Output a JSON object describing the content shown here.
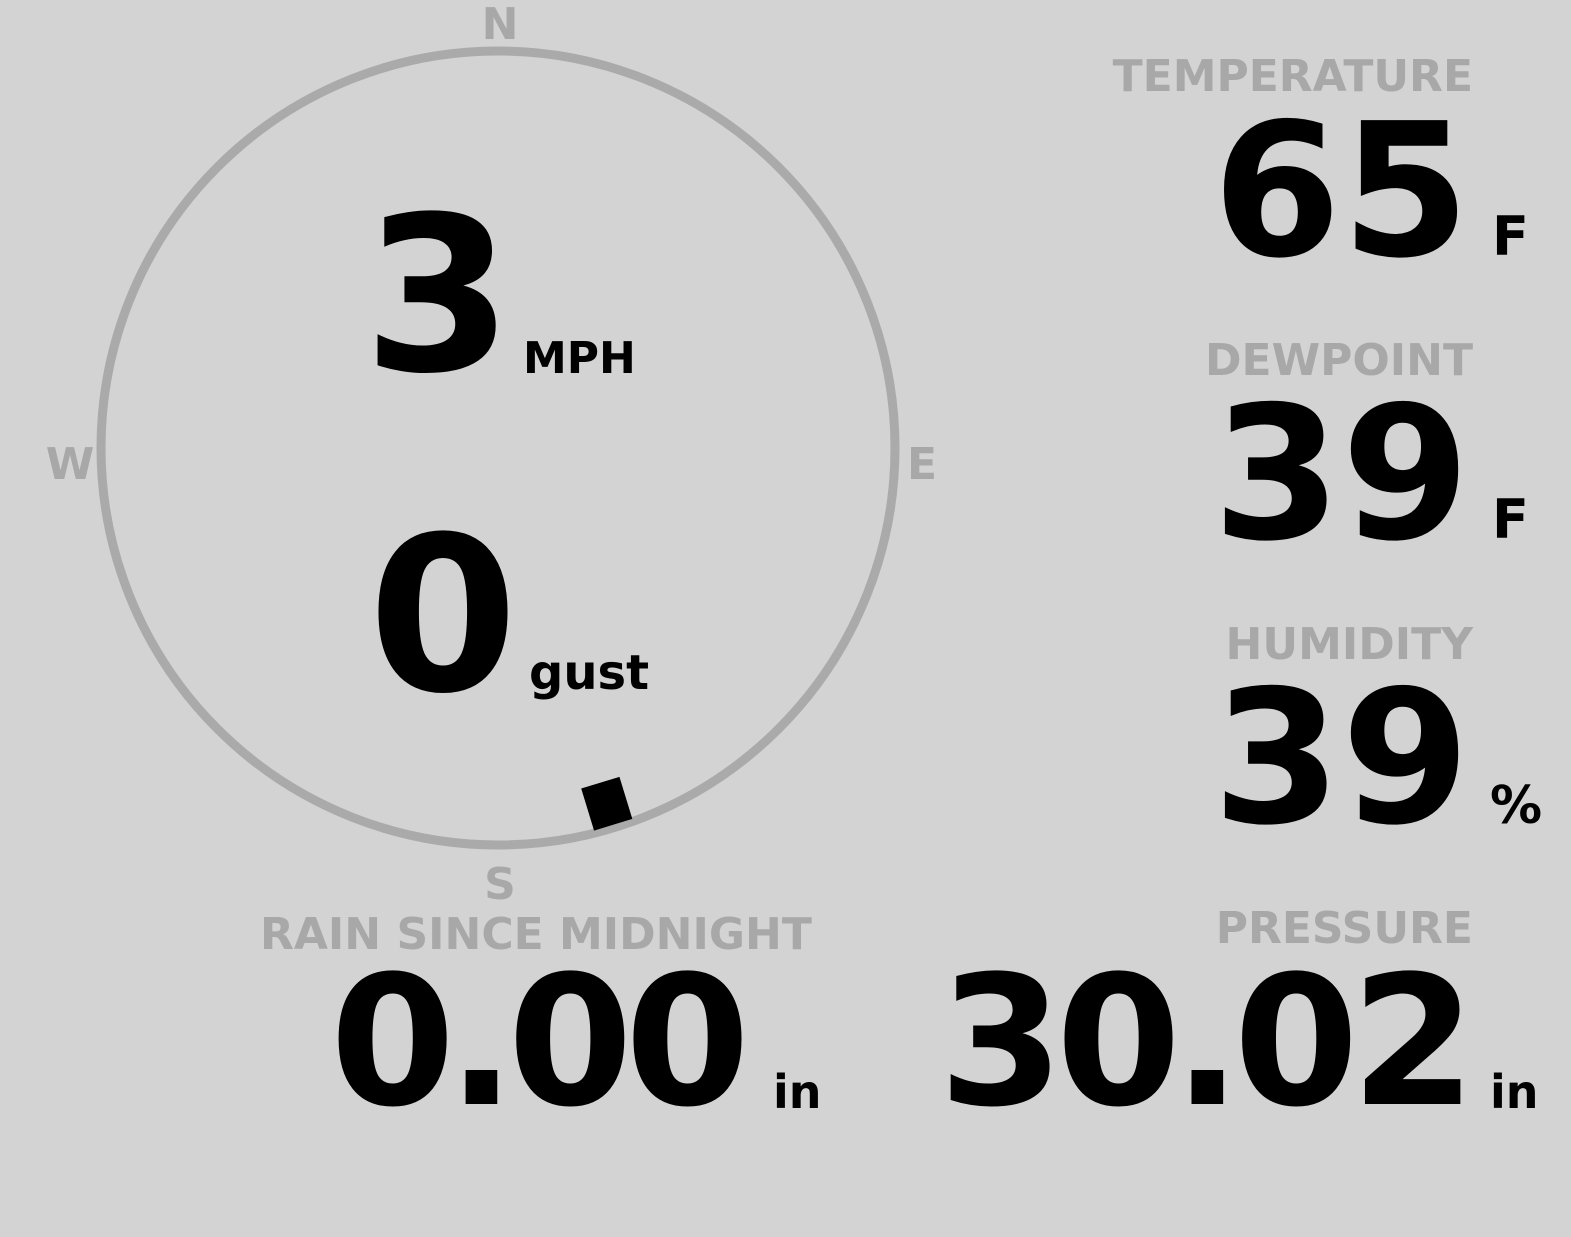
{
  "wind": {
    "compass": {
      "n": "N",
      "e": "E",
      "s": "S",
      "w": "W"
    },
    "speed": "3",
    "speed_unit": "MPH",
    "gust": "0",
    "gust_unit": "gust",
    "direction_deg": 163
  },
  "temperature": {
    "label": "TEMPERATURE",
    "value": "65",
    "unit": "F"
  },
  "dewpoint": {
    "label": "DEWPOINT",
    "value": "39",
    "unit": "F"
  },
  "humidity": {
    "label": "HUMIDITY",
    "value": "39",
    "unit": "%"
  },
  "rain": {
    "label": "RAIN SINCE MIDNIGHT",
    "value": "0.00",
    "unit": "in"
  },
  "pressure": {
    "label": "PRESSURE",
    "value": "30.02",
    "unit": "in"
  },
  "colors": {
    "background": "#d3d3d3",
    "label": "#a8a8a8",
    "ring": "#aaaaaa",
    "value": "#000000"
  }
}
